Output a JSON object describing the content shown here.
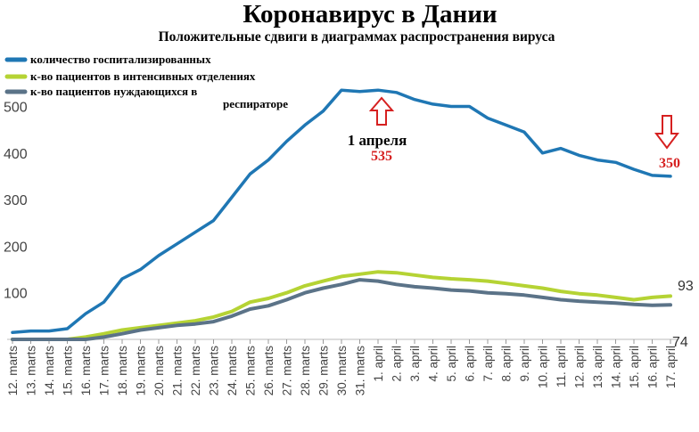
{
  "chart_data": {
    "type": "line",
    "title": "Коронавирус в Дании",
    "subtitle": "Положительные сдвиги в диаграммах распространения вируса",
    "y_ticks": [
      100,
      200,
      300,
      400,
      500
    ],
    "ylim": [
      0,
      560
    ],
    "grid": false,
    "legend_position": "top-left",
    "x": [
      "12. marts",
      "13. marts",
      "14. marts",
      "15. marts",
      "16. marts",
      "17. marts",
      "18. marts",
      "19. marts",
      "20. marts",
      "21. marts",
      "22. marts",
      "23. marts",
      "24. marts",
      "25. marts",
      "26. marts",
      "27. marts",
      "28. marts",
      "29. marts",
      "30. marts",
      "31. marts",
      "1. april",
      "2. april",
      "3. april",
      "4. april",
      "5. april",
      "6. april",
      "7. april",
      "8. april",
      "9. april",
      "10. april",
      "11. april",
      "12. april",
      "13. april",
      "14. april",
      "15. april",
      "16. april",
      "17. april"
    ],
    "series": [
      {
        "name": "количество госпитализированных",
        "color": "#1f77b4",
        "values": [
          15,
          18,
          18,
          23,
          55,
          80,
          130,
          150,
          180,
          205,
          230,
          255,
          305,
          355,
          385,
          425,
          460,
          490,
          535,
          532,
          535,
          530,
          515,
          505,
          500,
          500,
          475,
          460,
          445,
          400,
          410,
          395,
          385,
          380,
          365,
          352,
          350
        ]
      },
      {
        "name": "к-во пациентов в интенсивных отделениях",
        "color": "#b5d334",
        "values": [
          0,
          0,
          0,
          0,
          5,
          12,
          20,
          25,
          30,
          35,
          40,
          48,
          60,
          80,
          88,
          100,
          115,
          125,
          135,
          140,
          145,
          143,
          138,
          133,
          130,
          128,
          125,
          120,
          115,
          110,
          103,
          98,
          95,
          90,
          85,
          90,
          93
        ]
      },
      {
        "name": "к-во пациентов нуждающихся в респираторе",
        "color": "#5b7388",
        "values": [
          0,
          0,
          0,
          0,
          0,
          5,
          12,
          20,
          25,
          30,
          33,
          38,
          50,
          65,
          72,
          85,
          100,
          110,
          118,
          128,
          125,
          118,
          113,
          110,
          106,
          104,
          100,
          98,
          95,
          90,
          85,
          82,
          80,
          78,
          75,
          73,
          74
        ]
      }
    ],
    "annotations": {
      "peak_date": "1 апреля",
      "peak_value": "535",
      "end_value": "350",
      "end_icu": "93",
      "end_resp": "74"
    }
  },
  "legend": {
    "items": [
      {
        "label": "количество госпитализированных",
        "color": "#1f77b4"
      },
      {
        "label": "к-во пациентов в интенсивных отделениях",
        "color": "#b5d334"
      },
      {
        "label_line1": "к-во пациентов нуждающихся в",
        "label_line2": "респираторе",
        "color": "#5b7388"
      }
    ]
  }
}
